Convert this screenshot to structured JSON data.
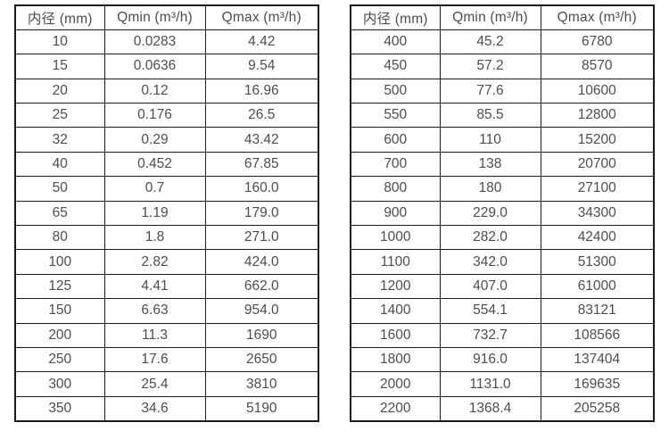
{
  "colors": {
    "text": "#4d4d4d",
    "border": "#1a1a1a",
    "background": "#ffffff"
  },
  "tables": [
    {
      "name": "small-diameters",
      "headers": [
        "内径 (mm)",
        "Qmin (m³/h)",
        "Qmax (m³/h)"
      ],
      "rows": [
        [
          "10",
          "0.0283",
          "4.42"
        ],
        [
          "15",
          "0.0636",
          "9.54"
        ],
        [
          "20",
          "0.12",
          "16.96"
        ],
        [
          "25",
          "0.176",
          "26.5"
        ],
        [
          "32",
          "0.29",
          "43.42"
        ],
        [
          "40",
          "0.452",
          "67.85"
        ],
        [
          "50",
          "0.7",
          "160.0"
        ],
        [
          "65",
          "1.19",
          "179.0"
        ],
        [
          "80",
          "1.8",
          "271.0"
        ],
        [
          "100",
          "2.82",
          "424.0"
        ],
        [
          "125",
          "4.41",
          "662.0"
        ],
        [
          "150",
          "6.63",
          "954.0"
        ],
        [
          "200",
          "11.3",
          "1690"
        ],
        [
          "250",
          "17.6",
          "2650"
        ],
        [
          "300",
          "25.4",
          "3810"
        ],
        [
          "350",
          "34.6",
          "5190"
        ]
      ]
    },
    {
      "name": "large-diameters",
      "headers": [
        "内径 (mm)",
        "Qmin (m³/h)",
        "Qmax (m³/h)"
      ],
      "rows": [
        [
          "400",
          "45.2",
          "6780"
        ],
        [
          "450",
          "57.2",
          "8570"
        ],
        [
          "500",
          "77.6",
          "10600"
        ],
        [
          "550",
          "85.5",
          "12800"
        ],
        [
          "600",
          "110",
          "15200"
        ],
        [
          "700",
          "138",
          "20700"
        ],
        [
          "800",
          "180",
          "27100"
        ],
        [
          "900",
          "229.0",
          "34300"
        ],
        [
          "1000",
          "282.0",
          "42400"
        ],
        [
          "1100",
          "342.0",
          "51300"
        ],
        [
          "1200",
          "407.0",
          "61000"
        ],
        [
          "1400",
          "554.1",
          "83121"
        ],
        [
          "1600",
          "732.7",
          "108566"
        ],
        [
          "1800",
          "916.0",
          "137404"
        ],
        [
          "2000",
          "1131.0",
          "169635"
        ],
        [
          "2200",
          "1368.4",
          "205258"
        ]
      ]
    }
  ]
}
